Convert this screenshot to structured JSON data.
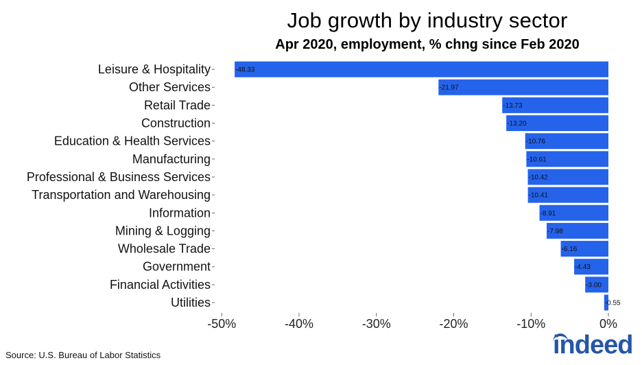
{
  "title": "Job growth by industry sector",
  "subtitle": "Apr 2020, employment, % chng since Feb 2020",
  "source": "Source: U.S. Bureau of Labor Statistics",
  "logo": {
    "text": "indeed",
    "color": "#2557a7"
  },
  "chart_data": {
    "type": "bar",
    "orientation": "horizontal",
    "bar_color": "#2563eb",
    "categories": [
      "Leisure & Hospitality",
      "Other Services",
      "Retail Trade",
      "Construction",
      "Education & Health Services",
      "Manufacturing",
      "Professional & Business Services",
      "Transportation and Warehousing",
      "Information",
      "Mining & Logging",
      "Wholesale Trade",
      "Government",
      "Financial Activities",
      "Utilities"
    ],
    "values": [
      -48.33,
      -21.97,
      -13.73,
      -13.2,
      -10.76,
      -10.61,
      -10.42,
      -10.41,
      -8.91,
      -7.98,
      -6.16,
      -4.43,
      -3.0,
      -0.55
    ],
    "data_labels": [
      "-48.33",
      "-21.97",
      "-13.73",
      "-13.20",
      "-10.76",
      "-10.61",
      "-10.42",
      "-10.41",
      "-8.91",
      "-7.98",
      "-6.16",
      "-4.43",
      "-3.00",
      "-0.55"
    ],
    "xlim": [
      -51,
      0
    ],
    "x_ticks": [
      -50,
      -40,
      -30,
      -20,
      -10,
      0
    ],
    "x_tick_labels": [
      "-50%",
      "-40%",
      "-30%",
      "-20%",
      "-10%",
      "0%"
    ],
    "grid": false
  }
}
